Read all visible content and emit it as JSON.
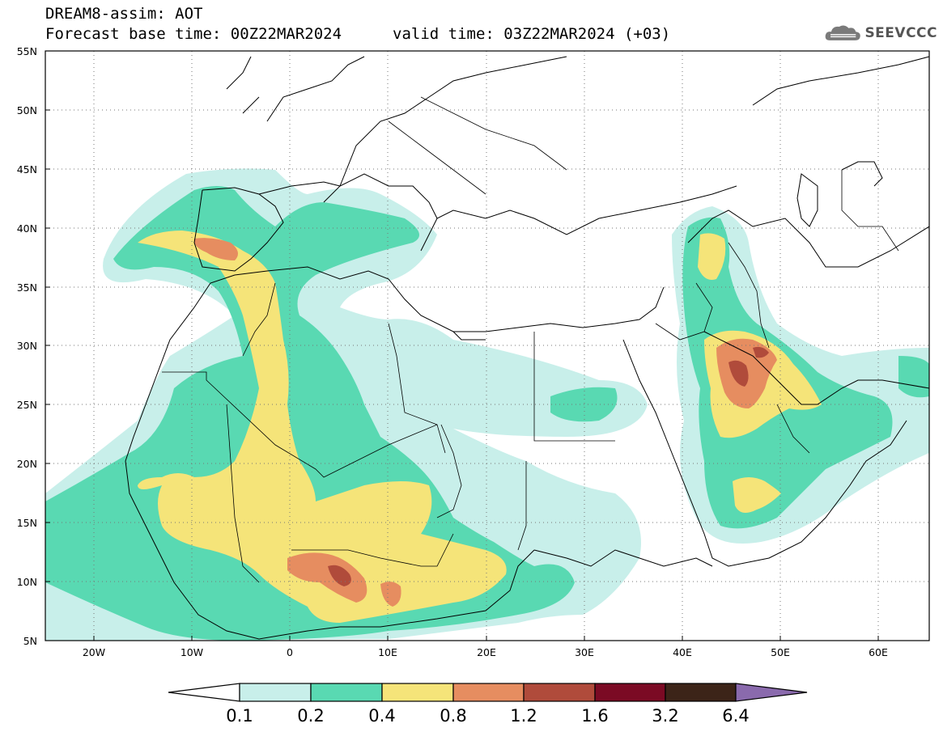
{
  "header": {
    "line1": "DREAM8-assim: AOT",
    "line2": "Forecast base time: 00Z22MAR2024",
    "line3": "valid time: 03Z22MAR2024 (+03)"
  },
  "logo": {
    "text": "SEEVCCC",
    "icon": "cloud-logo-icon"
  },
  "map": {
    "lon_range": [
      -25,
      65
    ],
    "lat_range": [
      5,
      55
    ],
    "lat_ticks": [
      "5N",
      "10N",
      "15N",
      "20N",
      "25N",
      "30N",
      "35N",
      "40N",
      "45N",
      "50N",
      "55N"
    ],
    "lon_ticks": [
      "20W",
      "10W",
      "0",
      "10E",
      "20E",
      "30E",
      "40E",
      "50E",
      "60E"
    ],
    "grid": "dotted"
  },
  "colorbar": {
    "labels": [
      "0.1",
      "0.2",
      "0.4",
      "0.8",
      "1.2",
      "1.6",
      "3.2",
      "6.4"
    ],
    "colors": [
      "#ffffff",
      "#c8efea",
      "#59d9b2",
      "#f5e479",
      "#e68d60",
      "#b04b3b",
      "#7b0a24",
      "#3c2418",
      "#8a6aad"
    ]
  }
}
